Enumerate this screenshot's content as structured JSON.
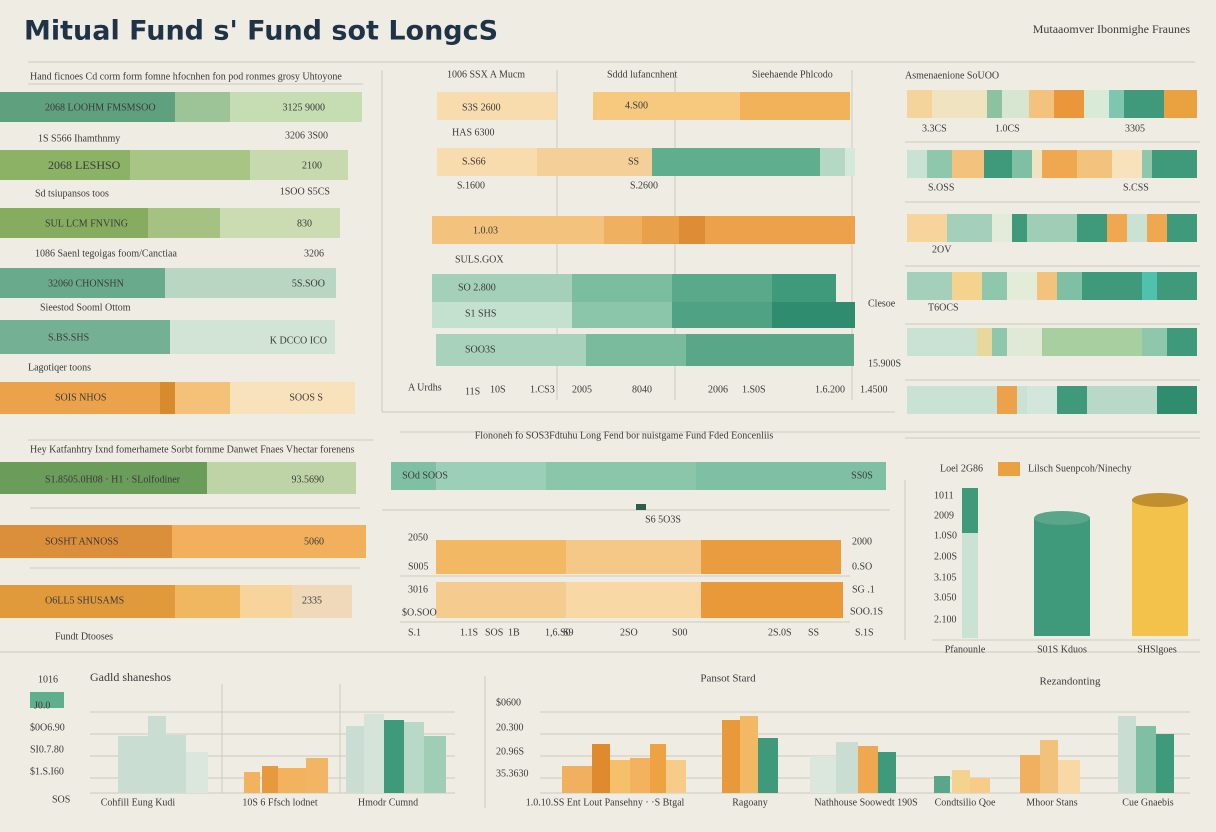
{
  "header": {
    "title": "Mitual Fund s' Fund sot LongcS",
    "subtitle": "Mutaaomver Ibonmighe Fraunes"
  },
  "left_panel": {
    "texts": [
      "Hand ficnoes Cd corm form fomne hfocnhen fon pod ronmes grosy Uhtoyone",
      "2068 LOOHM FMSMSOO",
      "3125 9000",
      "1S S566 Ihamthnmy",
      "3206 3S00",
      "2068 LESHSO",
      "2100",
      "Sd tsiupansos toos",
      "1SOO S5CS",
      "SUL LCM FNVING",
      "830",
      "1086 Saenl tegoigas foom/Canctiaa",
      "3206",
      "32060 CHONSHN",
      "5S.SOO",
      "Sieestod Sooml Ottom",
      "S.BS.SHS",
      "K DCCO ICO",
      "Lagotiqer toons",
      "SOIS NHOS",
      "SOOS S",
      "Hey Katfanhtry Ixnd fomerhamete Sorbt fornme Danwet Fnaes Vhectar forenens",
      "S1.8505.0H08 · H1 · SLolfodiner",
      "93.5690",
      "SOSHT ANNOSS",
      "5060",
      "O6LL5 SHUSAMS",
      "2335",
      "Fundt Dtooses"
    ]
  },
  "middle_panel": {
    "texts": [
      "1006 SSX A Mucm",
      "Sddd lufancnhent",
      "Sieehaende Phlcodo",
      "S3S 2600",
      "4.S00",
      "HAS 6300",
      "S.S66",
      "SS",
      "S.1600",
      "S.2600",
      "1.0.03",
      "SULS.GOX",
      "SO 2.800",
      "S1 SHS",
      "SOO3S",
      "Clesoe",
      "15.900S",
      "A Urdhs",
      "11S",
      "10S",
      "1.CS3",
      "2005",
      "8040",
      "2006",
      "1.S0S",
      "1.6.200",
      "1.4500"
    ]
  },
  "center_panel": {
    "texts": [
      "Flononeh fo SOS3Fdtuhu Long Fend bor nuistgame Fund Fded Eoncenliis",
      "SOd SOOS",
      "SS0S",
      "S6 5O3S",
      "2050",
      "S005",
      "3016",
      "$O.SOO",
      "2000",
      "0.SO",
      "SG .1",
      "SOO.1S",
      "S.1",
      "1.1S",
      "SOS",
      "1B",
      "1,6.S0",
      "S9",
      "2SO",
      "S00",
      "2S.0S",
      "SS",
      "S.1S"
    ]
  },
  "right_panel": {
    "texts": [
      "Asmenaenione SoUOO",
      "3.3CS",
      "1.0CS",
      "3305",
      "S.OSS",
      "S.CSS",
      "2OV",
      "T6OCS",
      "Loel 2G86",
      "Lilsch Suenpcoh/Ninechy",
      "1011",
      "2009",
      "1.0S0",
      "2.00S",
      "3.105",
      "3.050",
      "2.100",
      "Pfanounle",
      "S01S Kduos",
      "SHSlgoes"
    ]
  },
  "bottom_panel": {
    "texts": [
      "Gadld shaneshos",
      "1016",
      "J0.0",
      "$0O6.90",
      "SI0.7.80",
      "$1.S.I60",
      "SOS",
      "Cohfill Eung Kudi",
      "10S 6 Ffsch lodnet",
      "Hmodr Cumnd",
      "Pansot Stard",
      "Rezandonting",
      "$0600",
      "20.300",
      "20.96S",
      "35.3630",
      "1.0.10.SS Ent Lout Pansehny · ·S Btgal",
      "Ragoany",
      "Nathhouse Soowedt 190S",
      "Condtsilio Qoe",
      "Mhoor Stans",
      "Cue Gnaebis"
    ]
  }
}
